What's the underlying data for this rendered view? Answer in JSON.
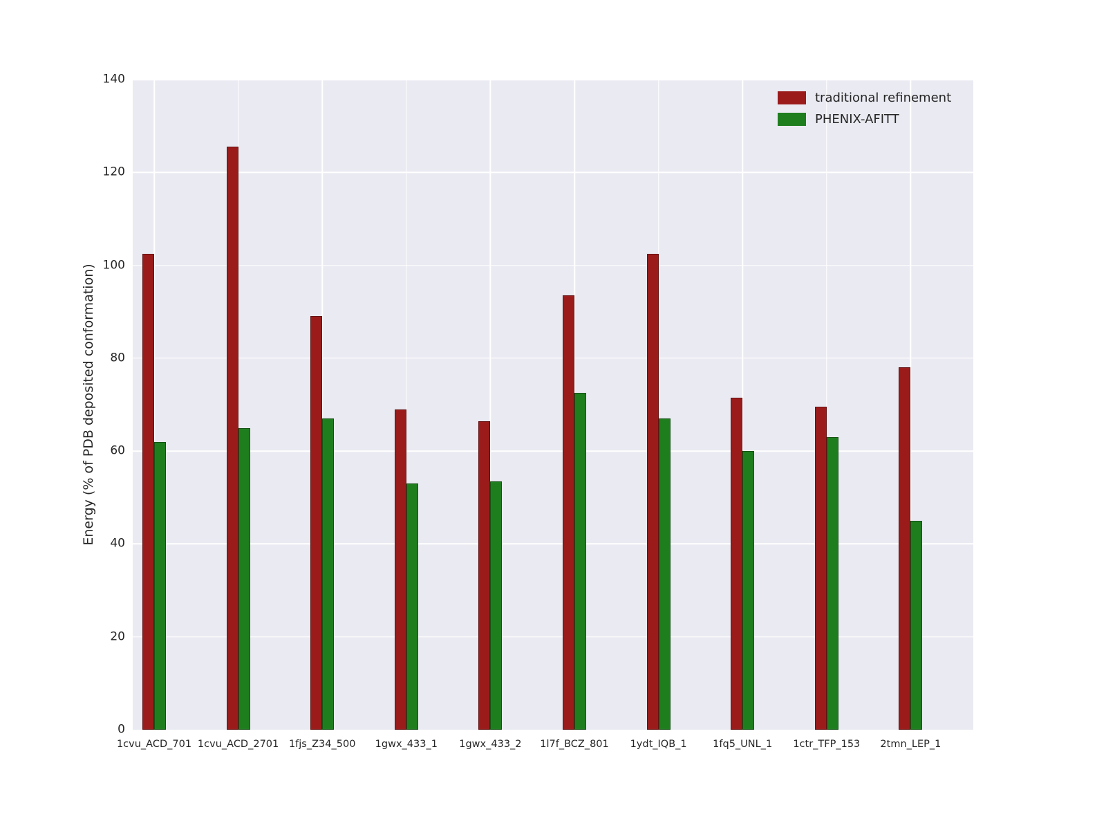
{
  "chart_data": {
    "type": "bar",
    "title": "",
    "xlabel": "",
    "ylabel": "Energy (% of PDB deposited conformation)",
    "ylim": [
      0,
      140
    ],
    "yticks": [
      0,
      20,
      40,
      60,
      80,
      100,
      120,
      140
    ],
    "grid": true,
    "legend_position": "upper right",
    "categories": [
      "1cvu_ACD_701",
      "1cvu_ACD_2701",
      "1fjs_Z34_500",
      "1gwx_433_1",
      "1gwx_433_2",
      "1l7f_BCZ_801",
      "1ydt_IQB_1",
      "1fq5_UNL_1",
      "1ctr_TFP_153",
      "2tmn_LEP_1"
    ],
    "series": [
      {
        "name": "traditional refinement",
        "color": "#9b1b1b",
        "values": [
          102.5,
          125.5,
          89,
          69,
          66.5,
          93.5,
          102.5,
          71.5,
          69.5,
          78
        ]
      },
      {
        "name": "PHENIX-AFITT",
        "color": "#1e7e1e",
        "values": [
          62,
          65,
          67,
          53,
          53.5,
          72.5,
          67,
          60,
          63,
          45
        ]
      }
    ]
  },
  "style": {
    "plot_background": "#eaeaf2",
    "figure_background": "#ffffff",
    "gridline_color": "#ffffff",
    "text_color": "#262626"
  }
}
